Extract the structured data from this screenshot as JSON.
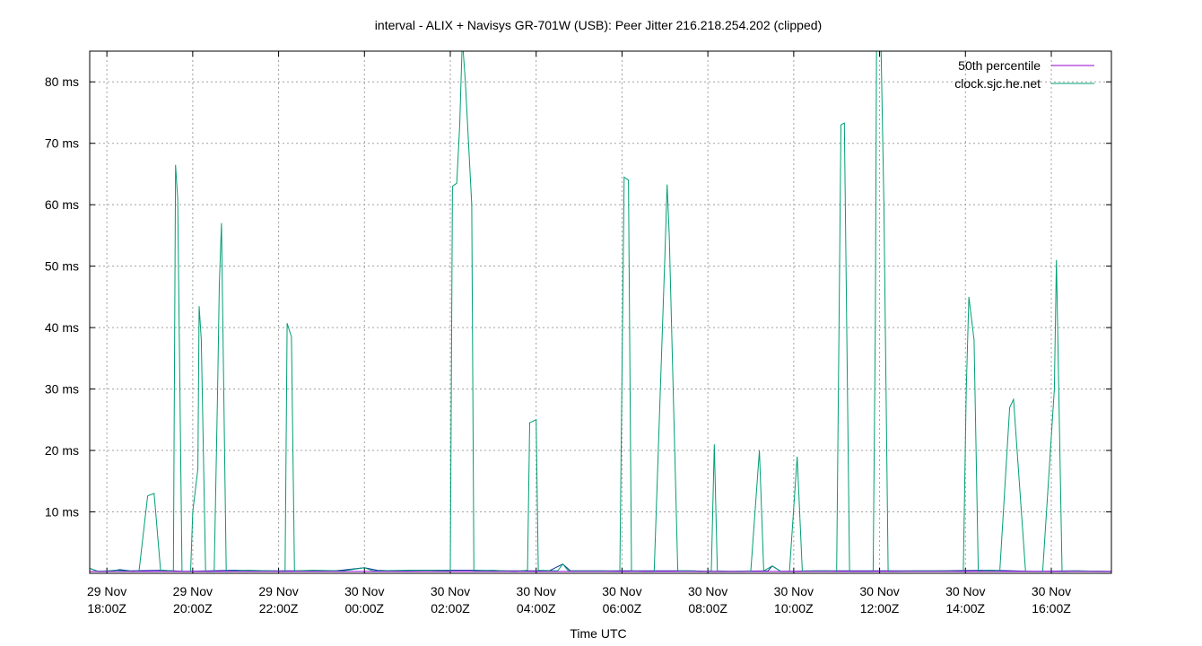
{
  "chart_data": {
    "type": "line",
    "title": "interval - ALIX + Navisys GR-701W (USB): Peer Jitter 216.218.254.202 (clipped)",
    "xlabel": "Time UTC",
    "ylabel": "",
    "x_unit": "hours_since_2020-11-29_18:00Z",
    "xlim": [
      -0.4,
      23.4
    ],
    "ylim": [
      0,
      85
    ],
    "grid": true,
    "legend_position": "top-right",
    "y_ticks": [
      {
        "value": 10,
        "label": "10 ms"
      },
      {
        "value": 20,
        "label": "20 ms"
      },
      {
        "value": 30,
        "label": "30 ms"
      },
      {
        "value": 40,
        "label": "40 ms"
      },
      {
        "value": 50,
        "label": "50 ms"
      },
      {
        "value": 60,
        "label": "60 ms"
      },
      {
        "value": 70,
        "label": "70 ms"
      },
      {
        "value": 80,
        "label": "80 ms"
      }
    ],
    "x_ticks": [
      {
        "value": 0,
        "date": "29 Nov",
        "time": "18:00Z"
      },
      {
        "value": 2,
        "date": "29 Nov",
        "time": "20:00Z"
      },
      {
        "value": 4,
        "date": "29 Nov",
        "time": "22:00Z"
      },
      {
        "value": 6,
        "date": "30 Nov",
        "time": "00:00Z"
      },
      {
        "value": 8,
        "date": "30 Nov",
        "time": "02:00Z"
      },
      {
        "value": 10,
        "date": "30 Nov",
        "time": "04:00Z"
      },
      {
        "value": 12,
        "date": "30 Nov",
        "time": "06:00Z"
      },
      {
        "value": 14,
        "date": "30 Nov",
        "time": "08:00Z"
      },
      {
        "value": 16,
        "date": "30 Nov",
        "time": "10:00Z"
      },
      {
        "value": 18,
        "date": "30 Nov",
        "time": "12:00Z"
      },
      {
        "value": 20,
        "date": "30 Nov",
        "time": "14:00Z"
      },
      {
        "value": 22,
        "date": "30 Nov",
        "time": "16:00Z"
      }
    ],
    "series": [
      {
        "name": "50th percentile",
        "color": "#9400d3",
        "points": [
          [
            -0.4,
            0.3
          ],
          [
            23.4,
            0.3
          ]
        ]
      },
      {
        "name": "clock.sjc.he.net",
        "color": "#009e73",
        "points": [
          [
            -0.4,
            0.8
          ],
          [
            -0.2,
            0.3
          ],
          [
            0.2,
            0.5
          ],
          [
            0.5,
            0.4
          ],
          [
            0.6,
            0.3
          ],
          [
            0.75,
            0.4
          ],
          [
            0.95,
            12.6
          ],
          [
            1.1,
            13.0
          ],
          [
            1.25,
            0.5
          ],
          [
            1.5,
            0.4
          ],
          [
            1.55,
            0.3
          ],
          [
            1.6,
            66.5
          ],
          [
            1.65,
            61.0
          ],
          [
            1.75,
            0.3
          ],
          [
            1.95,
            0.3
          ],
          [
            2.0,
            10.0
          ],
          [
            2.12,
            17.0
          ],
          [
            2.15,
            43.5
          ],
          [
            2.2,
            38.0
          ],
          [
            2.3,
            0.3
          ],
          [
            2.5,
            0.3
          ],
          [
            2.58,
            30.0
          ],
          [
            2.62,
            47.0
          ],
          [
            2.67,
            57.0
          ],
          [
            2.78,
            0.3
          ],
          [
            3.0,
            0.4
          ],
          [
            3.3,
            0.5
          ],
          [
            3.8,
            0.4
          ],
          [
            4.15,
            0.3
          ],
          [
            4.2,
            40.7
          ],
          [
            4.3,
            38.5
          ],
          [
            4.37,
            0.4
          ],
          [
            4.8,
            0.5
          ],
          [
            5.5,
            0.4
          ],
          [
            6.0,
            0.9
          ],
          [
            6.2,
            0.4
          ],
          [
            7.0,
            0.5
          ],
          [
            7.5,
            0.5
          ],
          [
            8.0,
            0.4
          ],
          [
            8.05,
            63.0
          ],
          [
            8.15,
            63.5
          ],
          [
            8.22,
            73.0
          ],
          [
            8.28,
            87.0
          ],
          [
            8.35,
            80.0
          ],
          [
            8.5,
            60.0
          ],
          [
            8.55,
            0.4
          ],
          [
            9.0,
            0.5
          ],
          [
            9.5,
            0.3
          ],
          [
            9.8,
            0.5
          ],
          [
            9.85,
            24.5
          ],
          [
            10.0,
            25.0
          ],
          [
            10.05,
            0.5
          ],
          [
            10.5,
            0.4
          ],
          [
            10.62,
            1.5
          ],
          [
            10.75,
            0.4
          ],
          [
            11.5,
            0.4
          ],
          [
            11.95,
            0.3
          ],
          [
            12.05,
            64.5
          ],
          [
            12.15,
            64.0
          ],
          [
            12.22,
            0.4
          ],
          [
            12.5,
            0.3
          ],
          [
            12.75,
            0.3
          ],
          [
            13.0,
            52.0
          ],
          [
            13.05,
            63.3
          ],
          [
            13.1,
            55.0
          ],
          [
            13.3,
            0.4
          ],
          [
            13.7,
            0.4
          ],
          [
            13.8,
            0.3
          ],
          [
            14.08,
            0.4
          ],
          [
            14.15,
            21.0
          ],
          [
            14.22,
            0.4
          ],
          [
            14.6,
            0.3
          ],
          [
            15.0,
            0.4
          ],
          [
            15.2,
            20.0
          ],
          [
            15.3,
            0.4
          ],
          [
            15.5,
            1.2
          ],
          [
            15.7,
            0.3
          ],
          [
            15.9,
            0.3
          ],
          [
            16.08,
            19.0
          ],
          [
            16.2,
            0.4
          ],
          [
            16.8,
            0.4
          ],
          [
            17.0,
            0.3
          ],
          [
            17.1,
            73.0
          ],
          [
            17.18,
            73.3
          ],
          [
            17.3,
            0.3
          ],
          [
            17.7,
            0.3
          ],
          [
            17.85,
            0.3
          ],
          [
            17.9,
            40.0
          ],
          [
            17.93,
            87.0
          ],
          [
            18.03,
            87.0
          ],
          [
            18.1,
            60.0
          ],
          [
            18.2,
            0.3
          ],
          [
            18.8,
            0.4
          ],
          [
            19.5,
            0.4
          ],
          [
            19.95,
            0.3
          ],
          [
            20.02,
            30.0
          ],
          [
            20.08,
            45.0
          ],
          [
            20.2,
            38.0
          ],
          [
            20.3,
            0.3
          ],
          [
            20.5,
            0.5
          ],
          [
            20.8,
            0.4
          ],
          [
            21.03,
            27.0
          ],
          [
            21.12,
            28.3
          ],
          [
            21.4,
            0.3
          ],
          [
            21.8,
            0.3
          ],
          [
            22.07,
            30.0
          ],
          [
            22.12,
            51.0
          ],
          [
            22.25,
            0.3
          ],
          [
            22.6,
            0.4
          ],
          [
            23.4,
            0.3
          ]
        ]
      },
      {
        "name": "",
        "color": "#0a2f9f",
        "points": [
          [
            -0.4,
            0.8
          ],
          [
            -0.2,
            0.3
          ],
          [
            0.1,
            0.4
          ],
          [
            0.3,
            0.6
          ],
          [
            0.55,
            0.4
          ],
          [
            1.3,
            0.5
          ],
          [
            1.8,
            0.3
          ],
          [
            2.4,
            0.4
          ],
          [
            3.0,
            0.5
          ],
          [
            3.6,
            0.4
          ],
          [
            4.5,
            0.4
          ],
          [
            5.3,
            0.4
          ],
          [
            6.0,
            0.9
          ],
          [
            6.3,
            0.5
          ],
          [
            6.7,
            0.4
          ],
          [
            7.4,
            0.5
          ],
          [
            8.6,
            0.5
          ],
          [
            9.3,
            0.4
          ],
          [
            10.3,
            0.4
          ],
          [
            10.62,
            1.5
          ],
          [
            10.8,
            0.4
          ],
          [
            11.5,
            0.4
          ],
          [
            12.4,
            0.4
          ],
          [
            13.5,
            0.4
          ],
          [
            14.4,
            0.3
          ],
          [
            15.4,
            0.4
          ],
          [
            15.5,
            1.2
          ],
          [
            15.7,
            0.3
          ],
          [
            16.5,
            0.4
          ],
          [
            17.6,
            0.4
          ],
          [
            18.5,
            0.4
          ],
          [
            19.3,
            0.4
          ],
          [
            20.6,
            0.5
          ],
          [
            21.6,
            0.3
          ],
          [
            22.5,
            0.4
          ],
          [
            23.4,
            0.3
          ]
        ]
      }
    ]
  }
}
